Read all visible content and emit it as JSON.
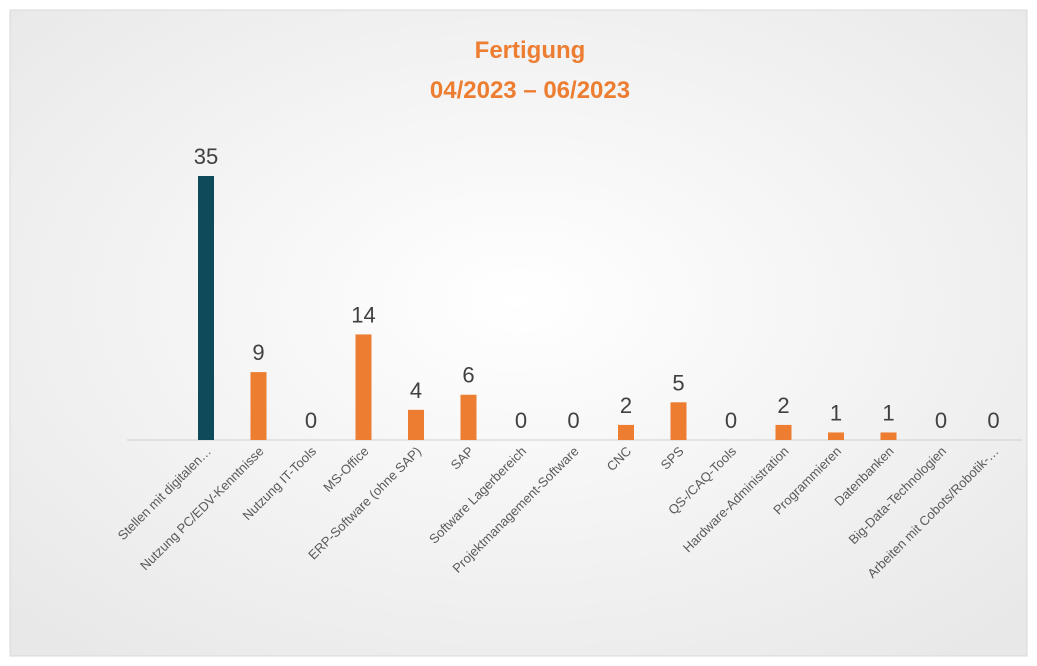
{
  "chart_data": {
    "type": "bar",
    "title": "Fertigung",
    "subtitle": "04/2023 – 06/2023",
    "categories": [
      "Stellen mit digitalen…",
      "Nutzung PC/EDV-Kenntnisse",
      "Nutzung IT-Tools",
      "MS-Office",
      "ERP-Software (ohne SAP)",
      "SAP",
      "Software Lagerbereich",
      "Projektmanagement-Software",
      "CNC",
      "SPS",
      "QS-/CAQ-Tools",
      "Hardware-Administration",
      "Programmieren",
      "Datenbanken",
      "Big-Data-Technologien",
      "Arbeiten mit Cobots/Robotik-…"
    ],
    "values": [
      35,
      9,
      0,
      14,
      4,
      6,
      0,
      0,
      2,
      5,
      0,
      2,
      1,
      1,
      0,
      0
    ],
    "colors": [
      "#0e4a5a",
      "#ed7d31",
      "#ed7d31",
      "#ed7d31",
      "#ed7d31",
      "#ed7d31",
      "#ed7d31",
      "#ed7d31",
      "#ed7d31",
      "#ed7d31",
      "#ed7d31",
      "#ed7d31",
      "#ed7d31",
      "#ed7d31",
      "#ed7d31",
      "#ed7d31"
    ]
  }
}
